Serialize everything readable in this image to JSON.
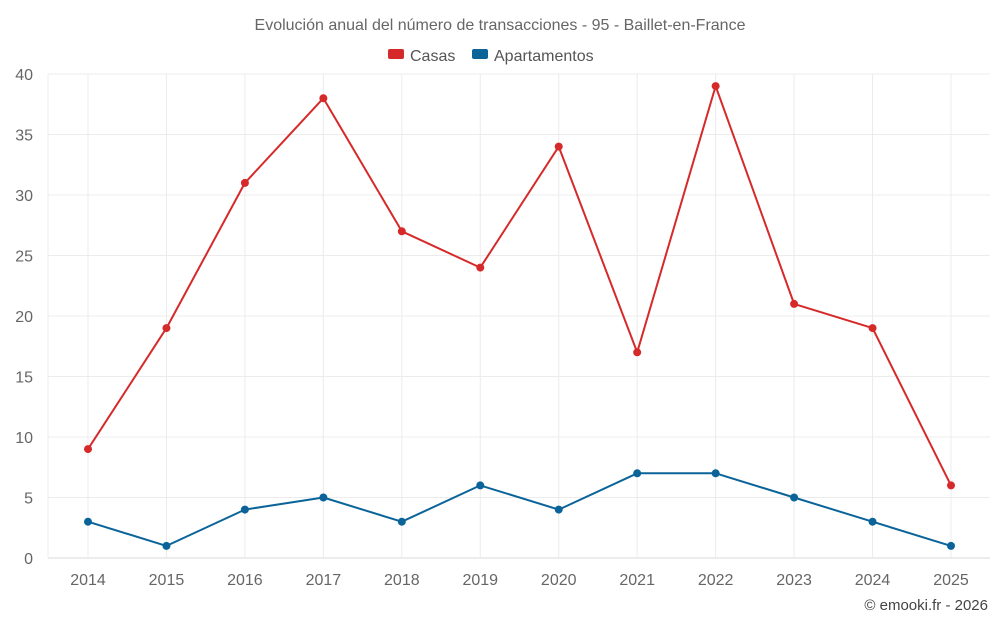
{
  "chart_data": {
    "type": "line",
    "title": "Evolución anual del número de transacciones - 95 - Baillet-en-France",
    "categories": [
      "2014",
      "2015",
      "2016",
      "2017",
      "2018",
      "2019",
      "2020",
      "2021",
      "2022",
      "2023",
      "2024",
      "2025"
    ],
    "series": [
      {
        "name": "Casas",
        "color": "#d62a2a",
        "values": [
          9,
          19,
          31,
          38,
          27,
          24,
          34,
          17,
          39,
          21,
          19,
          6
        ]
      },
      {
        "name": "Apartamentos",
        "color": "#0b6499",
        "values": [
          3,
          1,
          4,
          5,
          3,
          6,
          4,
          7,
          7,
          5,
          3,
          1
        ]
      }
    ],
    "ylim": [
      0,
      40
    ],
    "yticks": [
      0,
      5,
      10,
      15,
      20,
      25,
      30,
      35,
      40
    ],
    "xlabel": "",
    "ylabel": "",
    "grid": true,
    "legend": "top-center"
  },
  "credit": "© emooki.fr - 2026"
}
